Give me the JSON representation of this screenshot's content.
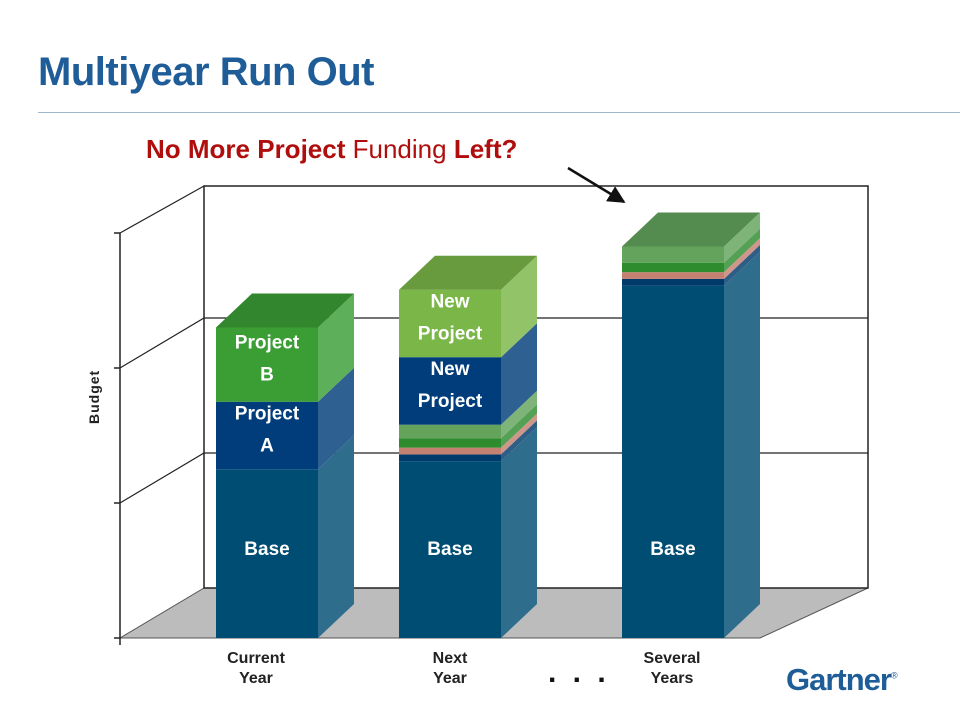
{
  "slide": {
    "title": "Multiyear Run Out",
    "subtitle": {
      "part1": "No More Project",
      "part2": "Funding",
      "part3": "Left?"
    },
    "ellipsis": ". . .",
    "logo": "Gartner"
  },
  "colors": {
    "title": "#1f5d99",
    "subtitle": "#b00d0d",
    "base": "#004d73",
    "project_a": "#003d7a",
    "project_b": "#3b9e35",
    "new_project_green": "#7ab648",
    "slice_light_green": "#63a35c",
    "slice_green": "#2e8b2e",
    "slice_salmon": "#c48070",
    "slice_dark_blue": "#003a6b"
  },
  "chart_data": {
    "type": "bar",
    "stacked": true,
    "three_d": true,
    "ylabel": "Budget",
    "xlabel": "",
    "categories": [
      "Current Year",
      "Next Year",
      "Several Years"
    ],
    "ylim": [
      0,
      300
    ],
    "grid": true,
    "bars": [
      {
        "category": "Current Year",
        "segments": [
          {
            "label": "Base",
            "value": 125,
            "color": "#004d73"
          },
          {
            "label": "Project A",
            "value": 50,
            "color": "#003d7a"
          },
          {
            "label": "Project B",
            "value": 55,
            "color": "#3b9e35"
          }
        ]
      },
      {
        "category": "Next Year",
        "segments": [
          {
            "label": "Base",
            "value": 131,
            "color": "#004d73"
          },
          {
            "label": "",
            "value": 5,
            "color": "#003a6b"
          },
          {
            "label": "",
            "value": 5,
            "color": "#c48070"
          },
          {
            "label": "",
            "value": 7,
            "color": "#2e8b2e"
          },
          {
            "label": "",
            "value": 10,
            "color": "#63a35c"
          },
          {
            "label": "New Project",
            "value": 50,
            "color": "#003d7a"
          },
          {
            "label": "New Project",
            "value": 50,
            "color": "#7ab648"
          }
        ]
      },
      {
        "category": "Several Years",
        "segments": [
          {
            "label": "Base",
            "value": 261,
            "color": "#004d73"
          },
          {
            "label": "",
            "value": 5,
            "color": "#003a6b"
          },
          {
            "label": "",
            "value": 5,
            "color": "#c48070"
          },
          {
            "label": "",
            "value": 7,
            "color": "#2e8b2e"
          },
          {
            "label": "",
            "value": 12,
            "color": "#63a35c"
          }
        ]
      }
    ],
    "annotation": "No More Project Funding Left?"
  }
}
